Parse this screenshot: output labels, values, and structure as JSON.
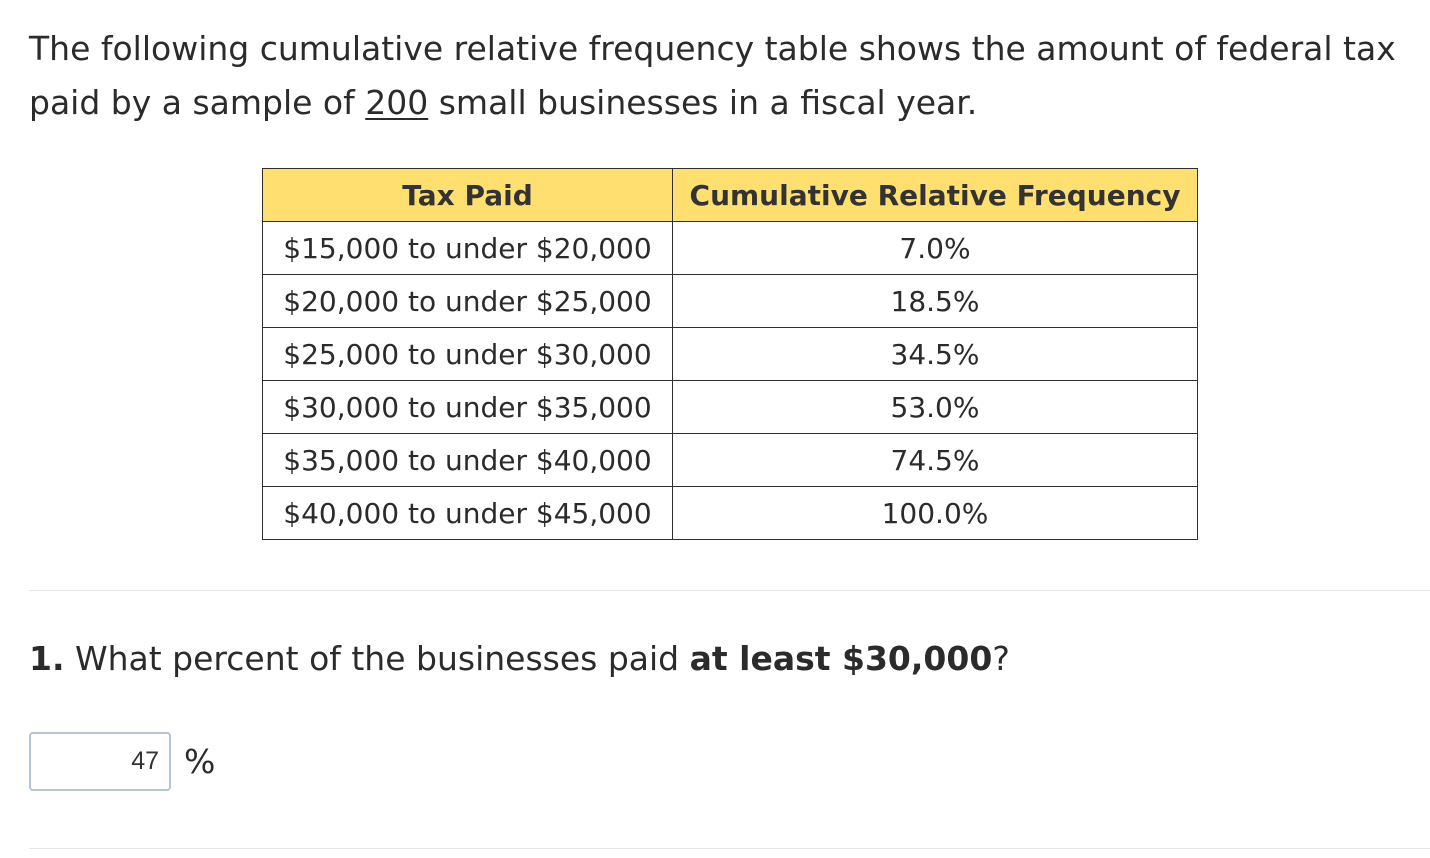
{
  "intro": {
    "text_before": "The following cumulative relative frequency table shows the amount of federal tax paid by a sample of ",
    "sample_size": "200",
    "text_after": " small businesses in a fiscal year."
  },
  "table": {
    "headers": [
      "Tax Paid",
      "Cumulative Relative Frequency"
    ],
    "rows": [
      {
        "tax": "$15,000 to under $20,000",
        "freq": "7.0%"
      },
      {
        "tax": "$20,000 to under $25,000",
        "freq": "18.5%"
      },
      {
        "tax": "$25,000 to under $30,000",
        "freq": "34.5%"
      },
      {
        "tax": "$30,000 to under $35,000",
        "freq": "53.0%"
      },
      {
        "tax": "$35,000 to under $40,000",
        "freq": "74.5%"
      },
      {
        "tax": "$40,000 to under $45,000",
        "freq": "100.0%"
      }
    ]
  },
  "question": {
    "number": "1.",
    "text_before": " What percent of the businesses paid ",
    "emphasis": "at least $30,000",
    "text_after": "?"
  },
  "answer": {
    "value": "47",
    "unit": "%"
  },
  "colors": {
    "header_bg": "#fedf70",
    "input_border": "#b3c6d8"
  }
}
